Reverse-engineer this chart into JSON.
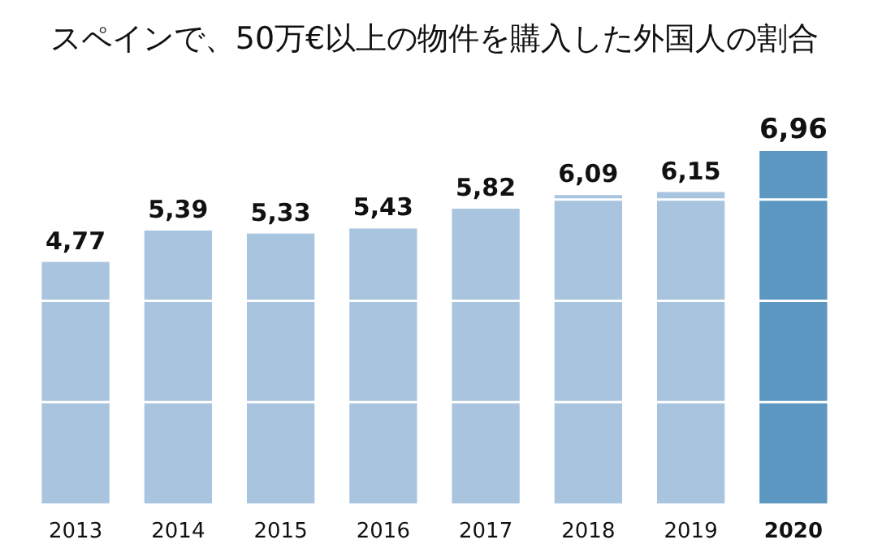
{
  "chart_data": {
    "type": "bar",
    "title": "スペインで、50万€以上の物件を購入した外国人の割合",
    "categories": [
      "2013",
      "2014",
      "2015",
      "2016",
      "2017",
      "2018",
      "2019",
      "2020"
    ],
    "values": [
      4.77,
      5.39,
      5.33,
      5.43,
      5.82,
      6.09,
      6.15,
      6.96
    ],
    "value_labels": [
      "4,77",
      "5,39",
      "5,33",
      "5,43",
      "5,82",
      "6,09",
      "6,15",
      "6,96"
    ],
    "colors": [
      "#a9c4de",
      "#a9c4de",
      "#a9c4de",
      "#a9c4de",
      "#a9c4de",
      "#a9c4de",
      "#a9c4de",
      "#5b97c1"
    ],
    "yticks": [
      {
        "value": 2,
        "label": null
      },
      {
        "value": 4,
        "label": null
      },
      {
        "value": 6,
        "label": null
      }
    ],
    "grid": "y",
    "tick_labels": "x"
  }
}
